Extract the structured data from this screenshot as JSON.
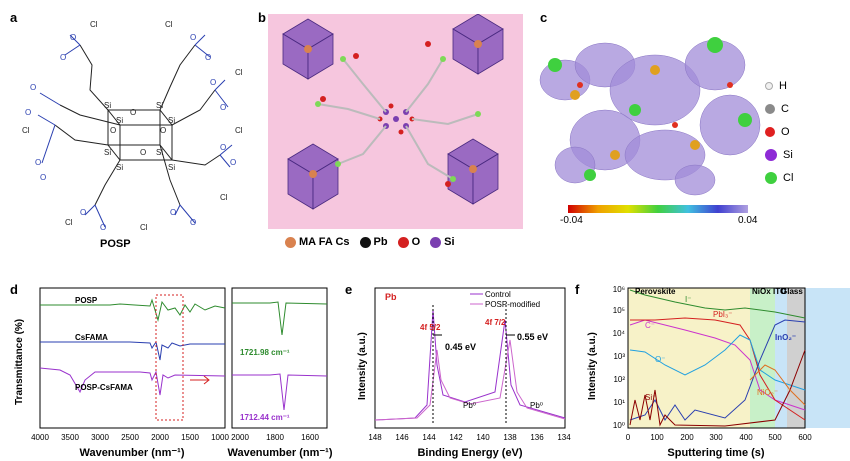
{
  "panels": {
    "a": {
      "letter": "a",
      "caption": "POSP"
    },
    "b": {
      "letter": "b",
      "legend": [
        {
          "label": "MA FA Cs",
          "color": "#d9824f"
        },
        {
          "label": "Pb",
          "color": "#111111"
        },
        {
          "label": "O",
          "color": "#d42020"
        },
        {
          "label": "Si",
          "color": "#7a3fb0"
        }
      ]
    },
    "c": {
      "letter": "c",
      "colorbar_min": "-0.04",
      "colorbar_max": "0.04",
      "atoms": [
        {
          "label": "H",
          "color": "#f0f0f0"
        },
        {
          "label": "C",
          "color": "#8a8a8a"
        },
        {
          "label": "O",
          "color": "#e02020"
        },
        {
          "label": "Si",
          "color": "#8e2bd6"
        },
        {
          "label": "Cl",
          "color": "#3fd03f"
        }
      ]
    },
    "d": {
      "letter": "d",
      "ylabel": "Transmittance (%)",
      "xlabel_left": "Wavenumber (nm⁻¹)",
      "xlabel_right": "Wavenumber (nm⁻¹)",
      "series_labels": [
        "POSP",
        "CsFAMA",
        "POSP-CsFAMA"
      ],
      "peak1": "1721.98 cm⁻¹",
      "peak2": "1712.44 cm⁻¹",
      "ticks_left": [
        "4000",
        "3500",
        "3000",
        "2500",
        "2000",
        "1500",
        "1000"
      ],
      "ticks_right": [
        "2000",
        "1800",
        "1600"
      ]
    },
    "e": {
      "letter": "e",
      "element": "Pb",
      "ylabel": "Intensity (a.u.)",
      "xlabel": "Binding Energy (eV)",
      "legend": [
        "Control",
        "POSP-modified"
      ],
      "peak_a": "4f 5/2",
      "peak_b": "4f 7/2",
      "shift_a": "0.45 eV",
      "shift_b": "0.55 eV",
      "pb0_a": "Pb⁰",
      "pb0_b": "Pb⁰",
      "ticks": [
        "148",
        "146",
        "144",
        "142",
        "140",
        "138",
        "136",
        "134"
      ]
    },
    "f": {
      "letter": "f",
      "ylabel": "Intensity (a.u.)",
      "xlabel": "Sputtering time (s)",
      "regions": [
        "Perovskite",
        "NiOx",
        "ITO",
        "Glass"
      ],
      "labels": {
        "I": "I⁻",
        "C": "C⁻",
        "PbI": "PbI₃⁻",
        "InO": "InO₂⁻",
        "O": "O⁻",
        "Si": "Si⁻",
        "NiO": "NiO₂⁻"
      },
      "xticks": [
        "0",
        "100",
        "200",
        "300",
        "400",
        "500",
        "600"
      ],
      "yticks": [
        "10⁰",
        "10¹",
        "10²",
        "10³",
        "10⁴",
        "10⁵",
        "10⁶"
      ]
    }
  },
  "chart_data": [
    {
      "type": "line",
      "title": "",
      "xlabel": "Binding Energy (eV)",
      "ylabel": "Intensity (a.u.)",
      "xlim": [
        148,
        134
      ],
      "series": [
        {
          "name": "Control"
        },
        {
          "name": "POSP-modified"
        }
      ]
    },
    {
      "type": "line",
      "title": "",
      "xlabel": "Sputtering time (s)",
      "ylabel": "Intensity (a.u.)",
      "xlim": [
        0,
        600
      ],
      "ylim": [
        1,
        1000000
      ],
      "yscale": "log"
    }
  ]
}
